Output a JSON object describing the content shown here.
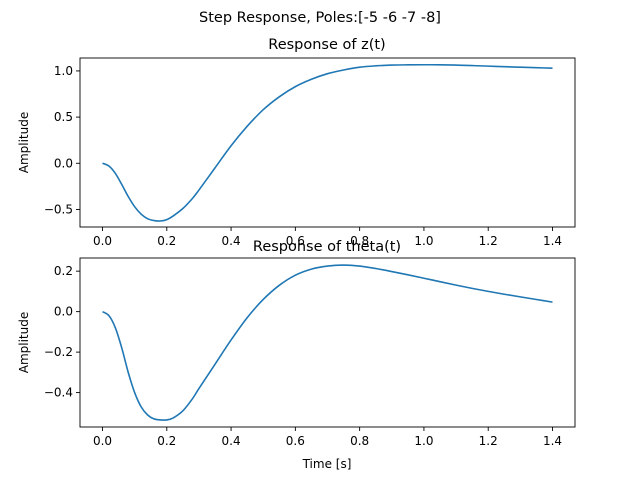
{
  "suptitle": "Step Response, Poles:[-5 -6 -7 -8]",
  "chart_data": [
    {
      "type": "line",
      "title": "Response of z(t)",
      "xlabel": "",
      "ylabel": "Amplitude",
      "xlim": [
        -0.07,
        1.47
      ],
      "ylim": [
        -0.69,
        1.14
      ],
      "xticks": [
        0.0,
        0.2,
        0.4,
        0.6,
        0.8,
        1.0,
        1.2,
        1.4
      ],
      "xtick_labels": [
        "0.0",
        "0.2",
        "0.4",
        "0.6",
        "0.8",
        "1.0",
        "1.2",
        "1.4"
      ],
      "yticks": [
        -0.5,
        0.0,
        0.5,
        1.0
      ],
      "ytick_labels": [
        "−0.5",
        "0.0",
        "0.5",
        "1.0"
      ],
      "grid": false,
      "line_color": "#1f77b4",
      "series": [
        {
          "x": [
            0.0,
            0.02,
            0.04,
            0.06,
            0.08,
            0.1,
            0.12,
            0.14,
            0.16,
            0.18,
            0.2,
            0.22,
            0.25,
            0.28,
            0.3,
            0.35,
            0.4,
            0.45,
            0.5,
            0.55,
            0.6,
            0.65,
            0.7,
            0.75,
            0.8,
            0.85,
            0.9,
            0.95,
            1.0,
            1.05,
            1.1,
            1.15,
            1.2,
            1.25,
            1.3,
            1.35,
            1.4
          ],
          "y": [
            0.0,
            -0.03,
            -0.11,
            -0.23,
            -0.36,
            -0.47,
            -0.55,
            -0.6,
            -0.62,
            -0.625,
            -0.61,
            -0.57,
            -0.49,
            -0.38,
            -0.29,
            -0.05,
            0.19,
            0.4,
            0.58,
            0.72,
            0.83,
            0.91,
            0.97,
            1.01,
            1.04,
            1.055,
            1.063,
            1.066,
            1.067,
            1.066,
            1.063,
            1.058,
            1.052,
            1.046,
            1.04,
            1.035,
            1.03
          ]
        }
      ]
    },
    {
      "type": "line",
      "title": "Response of theta(t)",
      "xlabel": "Time [s]",
      "ylabel": "Amplitude",
      "xlim": [
        -0.07,
        1.47
      ],
      "ylim": [
        -0.57,
        0.265
      ],
      "xticks": [
        0.0,
        0.2,
        0.4,
        0.6,
        0.8,
        1.0,
        1.2,
        1.4
      ],
      "xtick_labels": [
        "0.0",
        "0.2",
        "0.4",
        "0.6",
        "0.8",
        "1.0",
        "1.2",
        "1.4"
      ],
      "yticks": [
        -0.4,
        -0.2,
        0.0,
        0.2
      ],
      "ytick_labels": [
        "−0.4",
        "−0.2",
        "0.0",
        "0.2"
      ],
      "grid": false,
      "line_color": "#1f77b4",
      "series": [
        {
          "x": [
            0.0,
            0.02,
            0.04,
            0.06,
            0.08,
            0.1,
            0.12,
            0.14,
            0.16,
            0.18,
            0.2,
            0.22,
            0.25,
            0.28,
            0.3,
            0.35,
            0.4,
            0.45,
            0.5,
            0.55,
            0.6,
            0.65,
            0.7,
            0.75,
            0.8,
            0.85,
            0.9,
            0.95,
            1.0,
            1.05,
            1.1,
            1.15,
            1.2,
            1.25,
            1.3,
            1.35,
            1.4
          ],
          "y": [
            0.0,
            -0.02,
            -0.08,
            -0.18,
            -0.3,
            -0.4,
            -0.47,
            -0.51,
            -0.53,
            -0.535,
            -0.535,
            -0.525,
            -0.49,
            -0.43,
            -0.38,
            -0.26,
            -0.14,
            -0.03,
            0.06,
            0.13,
            0.18,
            0.21,
            0.225,
            0.23,
            0.225,
            0.213,
            0.198,
            0.182,
            0.165,
            0.148,
            0.131,
            0.115,
            0.1,
            0.086,
            0.073,
            0.06,
            0.047
          ]
        }
      ]
    }
  ]
}
